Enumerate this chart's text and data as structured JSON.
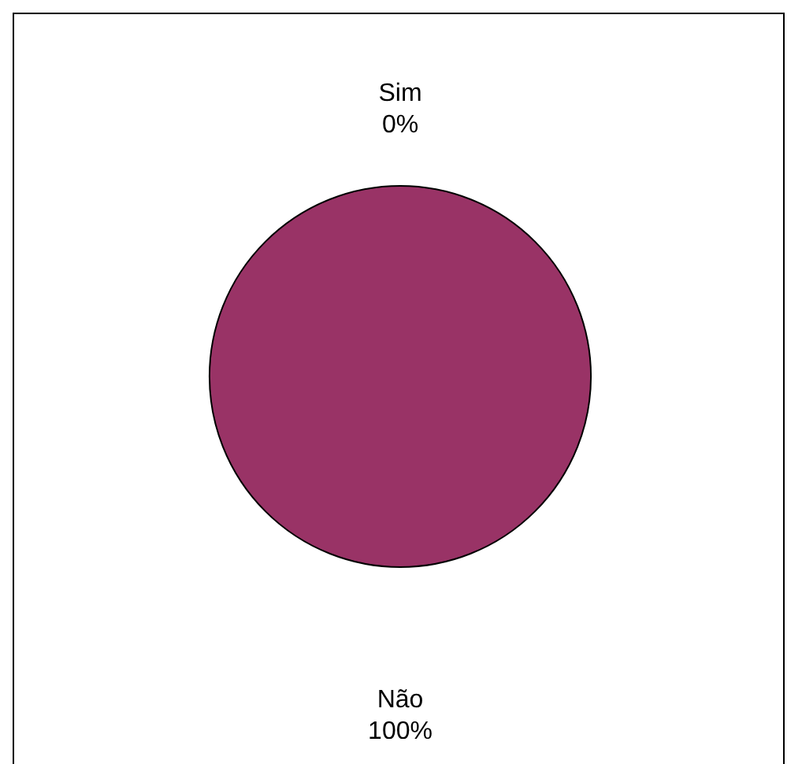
{
  "chart_data": {
    "type": "pie",
    "categories": [
      "Sim",
      "Não"
    ],
    "values": [
      0,
      100
    ],
    "colors": [
      "#993366",
      "#993366"
    ],
    "value_labels": [
      "0%",
      "100%"
    ]
  }
}
